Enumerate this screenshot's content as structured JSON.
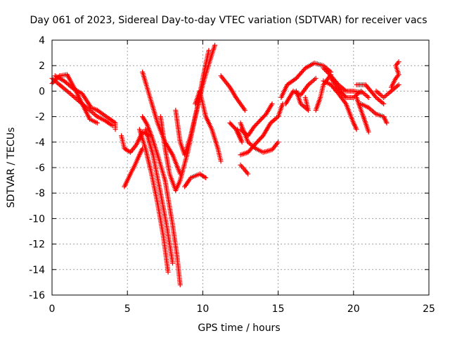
{
  "chart_data": {
    "type": "scatter",
    "title": "Day 061 of 2023, Sidereal Day-to-day VTEC variation (SDTVAR) for receiver vacs",
    "xlabel": "GPS time / hours",
    "ylabel": "SDTVAR / TECUs",
    "xlim": [
      0,
      25
    ],
    "ylim": [
      -16,
      4
    ],
    "xticks": [
      "0",
      "5",
      "10",
      "15",
      "20",
      "25"
    ],
    "yticks": [
      "4",
      "2",
      "0",
      "-2",
      "-4",
      "-6",
      "-8",
      "-10",
      "-12",
      "-14",
      "-16"
    ],
    "grid": true,
    "marker": "+",
    "marker_color": "#ff0000",
    "tracks": [
      [
        [
          0.0,
          1.0
        ],
        [
          0.5,
          0.5
        ],
        [
          1.0,
          0.0
        ],
        [
          1.5,
          -0.5
        ],
        [
          2.0,
          -1.0
        ],
        [
          2.5,
          -1.5
        ],
        [
          3.0,
          -2.0
        ],
        [
          3.5,
          -2.3
        ],
        [
          4.0,
          -2.7
        ]
      ],
      [
        [
          0.0,
          0.6
        ],
        [
          0.5,
          1.2
        ],
        [
          1.0,
          1.3
        ],
        [
          1.5,
          0.2
        ],
        [
          2.0,
          -1.0
        ],
        [
          2.5,
          -2.2
        ],
        [
          3.0,
          -2.5
        ]
      ],
      [
        [
          0.2,
          1.2
        ],
        [
          0.8,
          0.8
        ],
        [
          1.4,
          0.2
        ],
        [
          2.0,
          -0.2
        ],
        [
          2.6,
          -1.3
        ],
        [
          3.0,
          -1.5
        ],
        [
          3.6,
          -2.0
        ],
        [
          4.2,
          -2.5
        ],
        [
          4.2,
          -3.0
        ]
      ],
      [
        [
          4.6,
          -3.5
        ],
        [
          4.8,
          -4.5
        ],
        [
          5.2,
          -4.8
        ],
        [
          5.6,
          -4.2
        ],
        [
          6.0,
          -3.2
        ],
        [
          6.5,
          -3.5
        ]
      ],
      [
        [
          4.8,
          -7.5
        ],
        [
          5.2,
          -6.5
        ],
        [
          5.5,
          -5.8
        ],
        [
          5.8,
          -5.0
        ],
        [
          6.0,
          -4.5
        ]
      ],
      [
        [
          6.0,
          -2.0
        ],
        [
          6.3,
          -2.6
        ],
        [
          6.6,
          -3.5
        ],
        [
          7.0,
          -5.0
        ],
        [
          7.5,
          -7.0
        ],
        [
          8.0,
          -10.5
        ],
        [
          8.3,
          -13.0
        ],
        [
          8.5,
          -15.2
        ]
      ],
      [
        [
          5.8,
          -3.0
        ],
        [
          6.2,
          -4.5
        ],
        [
          6.6,
          -6.5
        ],
        [
          7.0,
          -8.8
        ],
        [
          7.4,
          -11.5
        ],
        [
          7.7,
          -14.2
        ]
      ],
      [
        [
          6.2,
          -3.0
        ],
        [
          6.7,
          -5.0
        ],
        [
          7.2,
          -8.0
        ],
        [
          7.6,
          -10.5
        ],
        [
          8.0,
          -13.5
        ]
      ],
      [
        [
          6.0,
          1.5
        ],
        [
          6.5,
          -0.5
        ],
        [
          7.0,
          -2.5
        ],
        [
          7.5,
          -4.0
        ],
        [
          8.0,
          -5.0
        ],
        [
          8.5,
          -6.5
        ]
      ],
      [
        [
          7.2,
          -2.0
        ],
        [
          7.5,
          -4.5
        ],
        [
          7.8,
          -6.5
        ],
        [
          8.2,
          -7.8
        ],
        [
          8.5,
          -7.0
        ],
        [
          9.0,
          -4.8
        ],
        [
          9.5,
          -2.0
        ],
        [
          10.0,
          0.5
        ],
        [
          10.5,
          2.5
        ],
        [
          10.8,
          3.6
        ]
      ],
      [
        [
          8.2,
          -1.5
        ],
        [
          8.5,
          -4.0
        ],
        [
          8.8,
          -5.0
        ],
        [
          9.2,
          -3.5
        ],
        [
          9.6,
          -1.5
        ],
        [
          10.0,
          1.0
        ],
        [
          10.4,
          3.2
        ]
      ],
      [
        [
          8.8,
          -7.5
        ],
        [
          9.2,
          -6.8
        ],
        [
          9.8,
          -6.5
        ],
        [
          10.2,
          -6.8
        ]
      ],
      [
        [
          9.5,
          -1.0
        ],
        [
          9.8,
          0.0
        ],
        [
          10.2,
          -2.0
        ],
        [
          10.6,
          -3.0
        ],
        [
          11.0,
          -4.5
        ],
        [
          11.2,
          -5.5
        ]
      ],
      [
        [
          11.2,
          1.2
        ],
        [
          11.8,
          0.3
        ],
        [
          12.2,
          -0.5
        ],
        [
          12.8,
          -1.5
        ]
      ],
      [
        [
          11.8,
          -2.5
        ],
        [
          12.2,
          -3.0
        ],
        [
          12.6,
          -4.0
        ],
        [
          12.3,
          -3.0
        ]
      ],
      [
        [
          12.5,
          -2.5
        ],
        [
          13.0,
          -4.0
        ],
        [
          13.5,
          -4.5
        ],
        [
          14.0,
          -4.8
        ],
        [
          14.6,
          -4.6
        ],
        [
          15.0,
          -4.0
        ]
      ],
      [
        [
          12.5,
          -5.0
        ],
        [
          13.0,
          -4.8
        ],
        [
          13.6,
          -4.0
        ],
        [
          14.0,
          -3.5
        ],
        [
          14.5,
          -2.5
        ],
        [
          15.0,
          -2.0
        ],
        [
          15.3,
          -1.0
        ]
      ],
      [
        [
          12.5,
          -3.0
        ],
        [
          13.0,
          -3.5
        ],
        [
          13.4,
          -2.8
        ],
        [
          13.8,
          -2.3
        ],
        [
          14.2,
          -1.8
        ],
        [
          14.6,
          -1.0
        ]
      ],
      [
        [
          12.5,
          -5.8
        ],
        [
          12.8,
          -6.2
        ],
        [
          13.0,
          -6.5
        ]
      ],
      [
        [
          15.2,
          -0.5
        ],
        [
          15.6,
          0.5
        ],
        [
          16.2,
          1.0
        ],
        [
          16.8,
          1.8
        ],
        [
          17.4,
          2.2
        ],
        [
          18.0,
          2.0
        ],
        [
          18.5,
          1.5
        ]
      ],
      [
        [
          15.5,
          -1.0
        ],
        [
          16.0,
          0.0
        ],
        [
          16.5,
          -0.3
        ],
        [
          17.0,
          0.5
        ],
        [
          17.5,
          1.0
        ]
      ],
      [
        [
          16.2,
          0.0
        ],
        [
          16.5,
          -1.0
        ],
        [
          17.0,
          -1.5
        ],
        [
          16.8,
          -0.5
        ]
      ],
      [
        [
          17.5,
          -1.5
        ],
        [
          17.8,
          -0.5
        ],
        [
          18.0,
          0.5
        ],
        [
          18.5,
          1.3
        ]
      ],
      [
        [
          18.0,
          1.8
        ],
        [
          18.5,
          1.2
        ],
        [
          19.0,
          0.5
        ],
        [
          19.5,
          0.0
        ],
        [
          20.0,
          0.0
        ],
        [
          20.5,
          -0.1
        ]
      ],
      [
        [
          18.0,
          0.8
        ],
        [
          18.5,
          0.5
        ],
        [
          19.0,
          -0.2
        ],
        [
          19.5,
          -1.0
        ],
        [
          20.0,
          -2.5
        ],
        [
          20.2,
          -3.0
        ]
      ],
      [
        [
          18.5,
          1.0
        ],
        [
          19.0,
          0.2
        ],
        [
          19.5,
          -0.5
        ],
        [
          20.0,
          -0.5
        ],
        [
          20.5,
          0.0
        ],
        [
          21.0,
          -0.5
        ]
      ],
      [
        [
          20.2,
          -0.5
        ],
        [
          20.5,
          -1.5
        ],
        [
          20.8,
          -2.5
        ],
        [
          21.0,
          -3.2
        ]
      ],
      [
        [
          20.2,
          0.5
        ],
        [
          20.8,
          0.5
        ],
        [
          21.5,
          -0.5
        ],
        [
          22.0,
          -1.0
        ]
      ],
      [
        [
          20.5,
          -1.0
        ],
        [
          21.0,
          -1.3
        ],
        [
          21.5,
          -1.8
        ],
        [
          22.0,
          -2.0
        ],
        [
          22.2,
          -2.5
        ]
      ],
      [
        [
          21.5,
          0.0
        ],
        [
          22.0,
          -0.5
        ],
        [
          22.5,
          0.0
        ],
        [
          23.0,
          0.5
        ]
      ],
      [
        [
          22.5,
          0.3
        ],
        [
          22.8,
          1.0
        ],
        [
          23.0,
          1.3
        ],
        [
          22.8,
          2.0
        ],
        [
          23.0,
          2.3
        ]
      ]
    ]
  }
}
